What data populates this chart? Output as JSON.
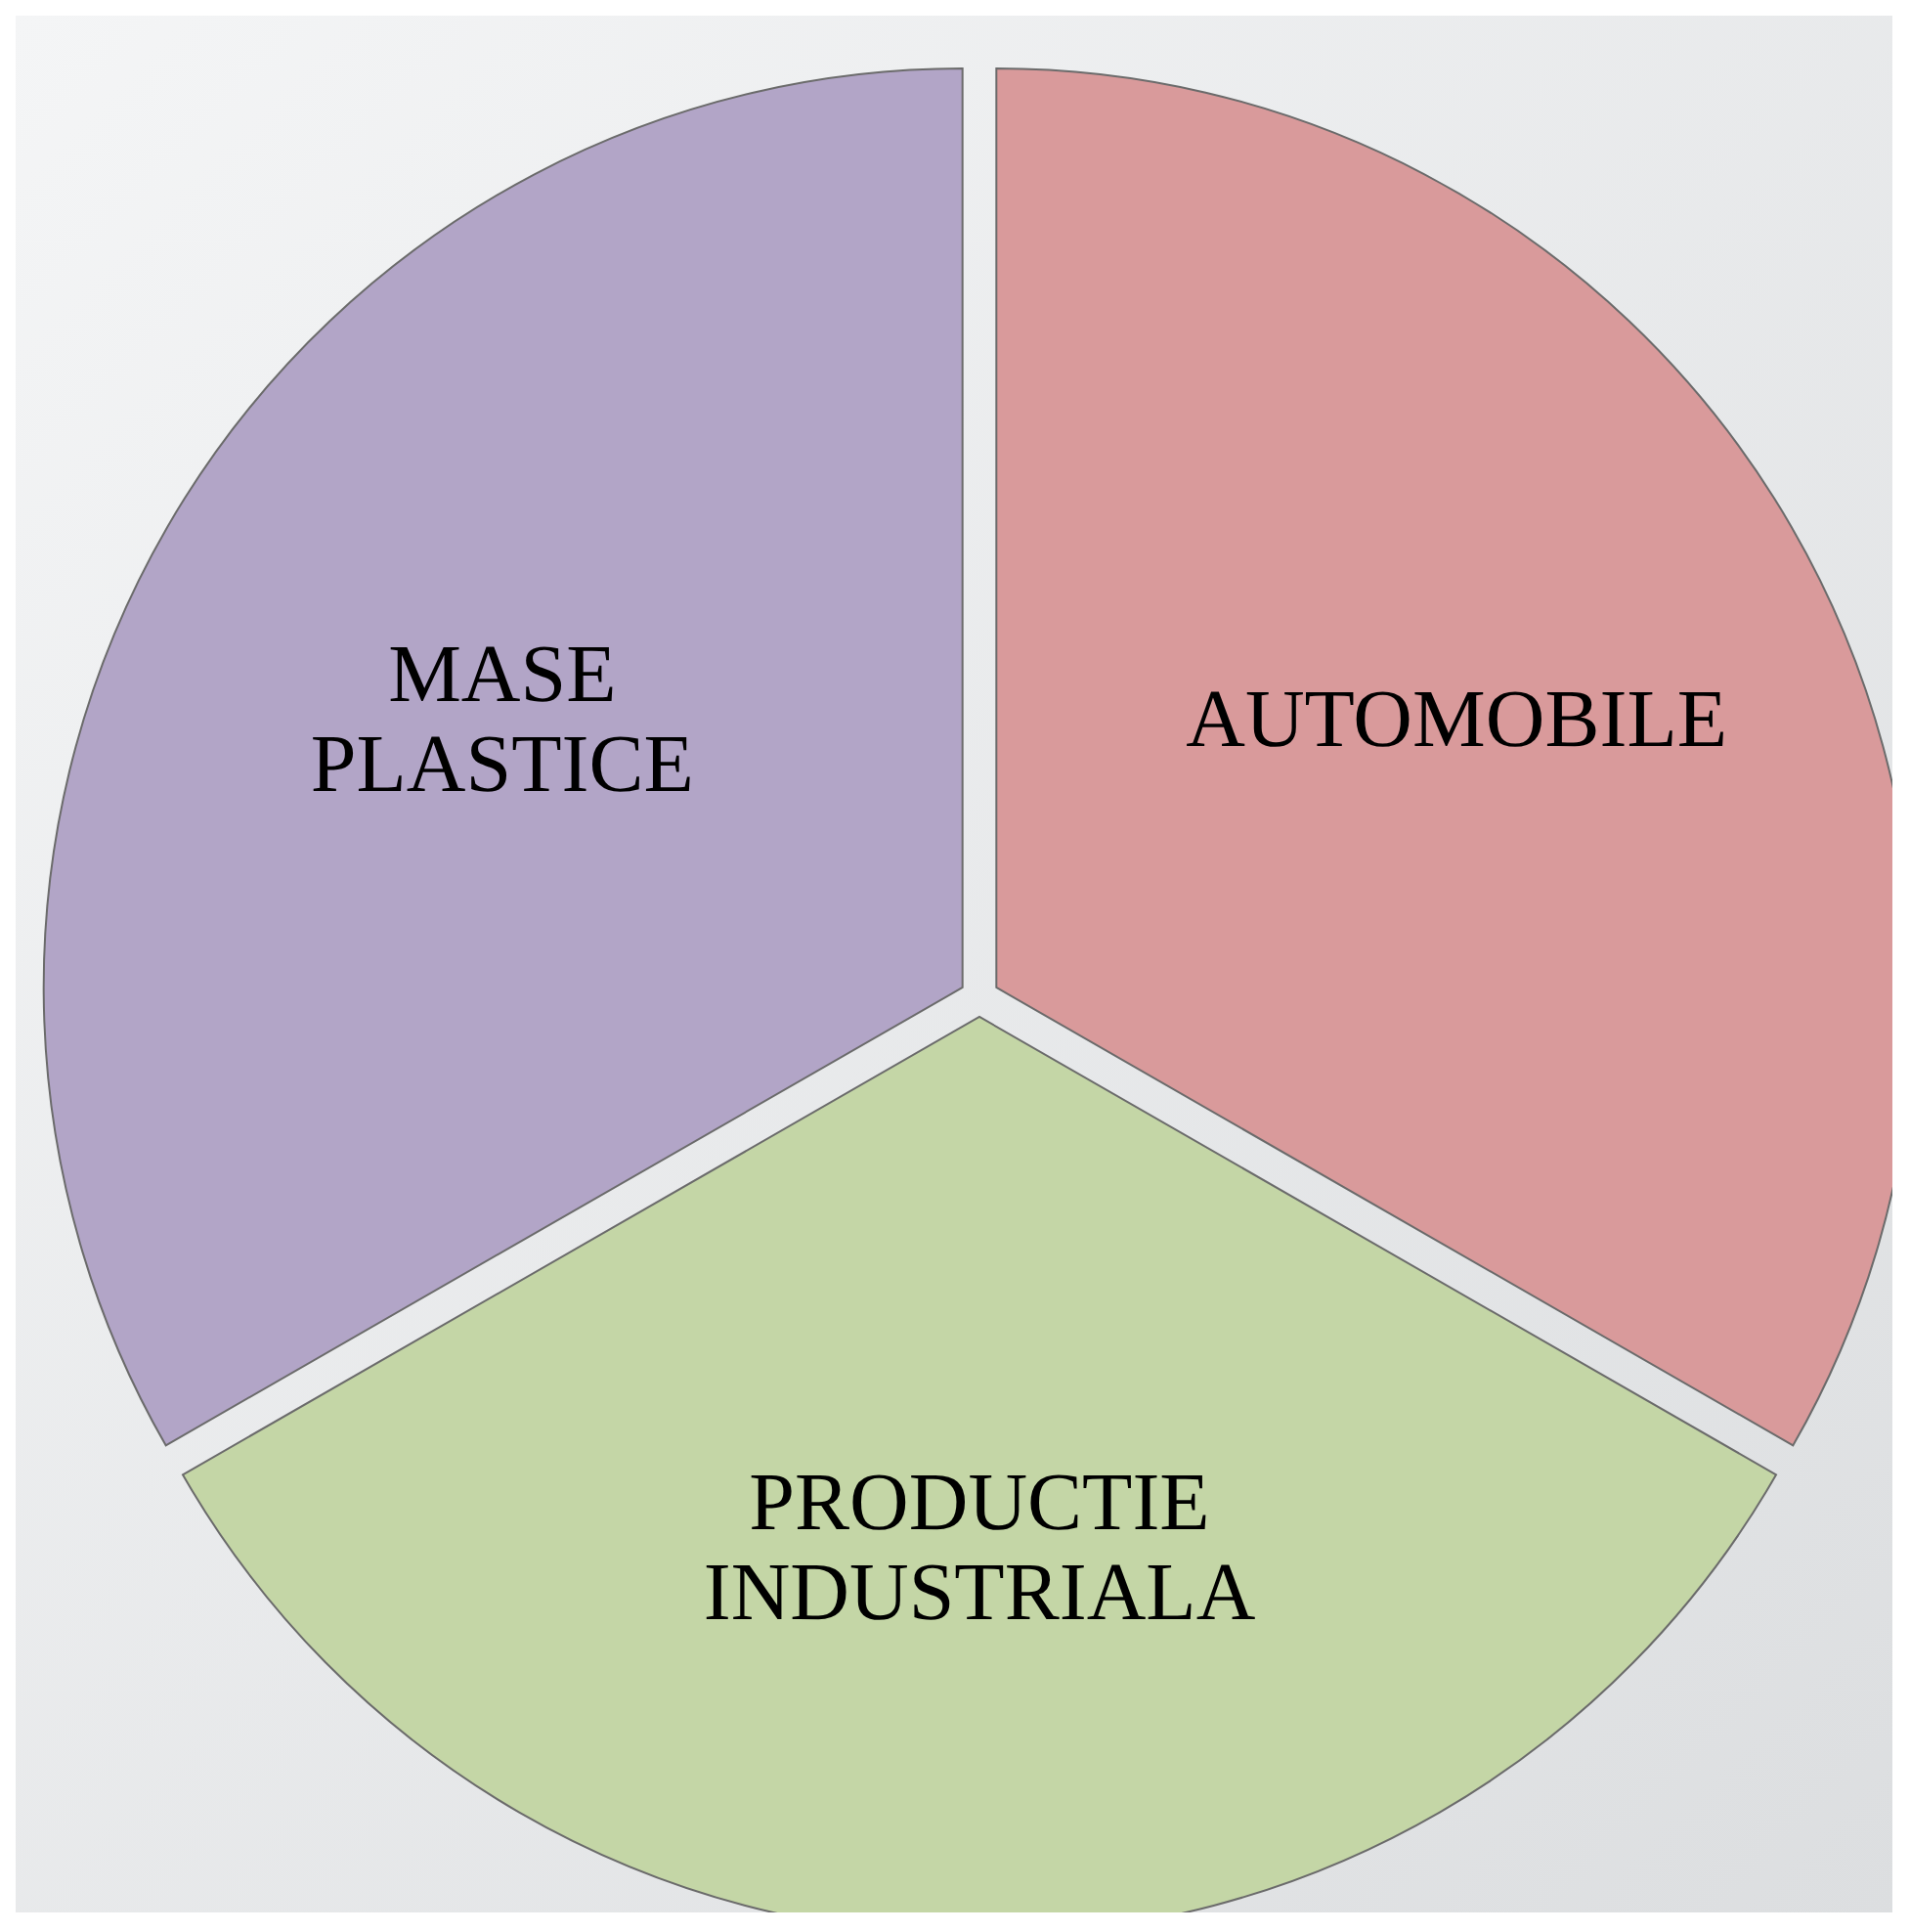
{
  "chart_data": {
    "type": "pie",
    "categories": [
      "AUTOMOBILE",
      "PRODUCTIE INDUSTRIALA",
      "MASE PLASTICE"
    ],
    "values": [
      33.3,
      33.4,
      33.3
    ],
    "colors": [
      "#d99a9b",
      "#c4d6a6",
      "#b2a5c7"
    ]
  }
}
